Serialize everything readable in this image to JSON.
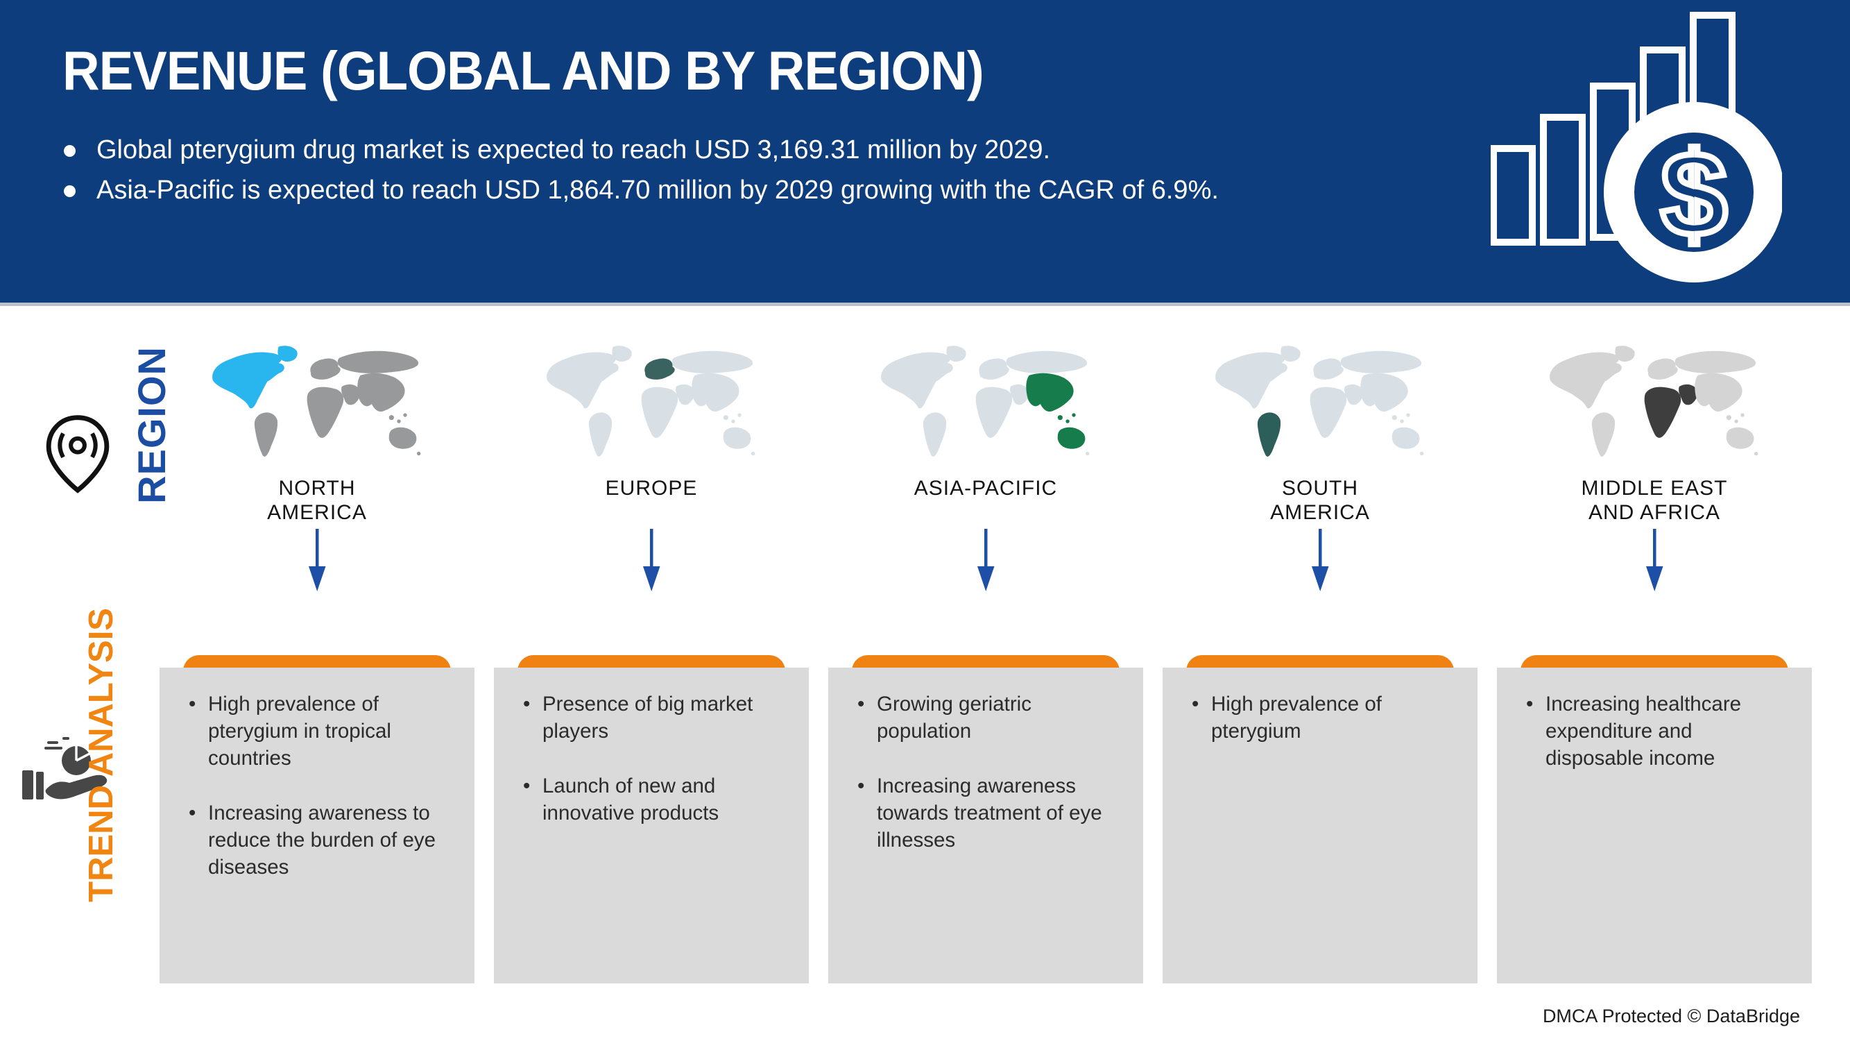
{
  "header": {
    "title": "REVENUE (GLOBAL AND BY REGION)",
    "bullets": [
      "Global pterygium drug market is expected to reach USD 3,169.31 million by 2029.",
      "Asia-Pacific is expected to reach USD 1,864.70 million by 2029 growing with the CAGR of 6.9%."
    ],
    "icons": [
      "bar-chart-growth-icon",
      "dollar-coin-icon"
    ]
  },
  "rails": {
    "region_label": "REGION",
    "region_icon": "map-pin-icon",
    "trend_label": "TREND ANALYSIS",
    "trend_icon": "hand-pie-chart-icon"
  },
  "regions": [
    {
      "id": "na",
      "name": "NORTH AMERICA",
      "highlight_color": "#29b6ee",
      "trends": [
        "High prevalence of pterygium in tropical countries",
        "Increasing awareness to reduce the burden of eye diseases"
      ]
    },
    {
      "id": "eu",
      "name": "EUROPE",
      "highlight_color": "#3a6360",
      "trends": [
        "Presence of big market players",
        "Launch of new and innovative products"
      ]
    },
    {
      "id": "ap",
      "name": "ASIA-PACIFIC",
      "highlight_color": "#177c4b",
      "trends": [
        "Growing geriatric population",
        "Increasing awareness towards treatment of eye illnesses"
      ]
    },
    {
      "id": "sa",
      "name": "SOUTH AMERICA",
      "highlight_color": "#2d5f5a",
      "trends": [
        "High prevalence of pterygium"
      ]
    },
    {
      "id": "mea",
      "name": "MIDDLE EAST AND AFRICA",
      "highlight_color": "#3e3e3e",
      "trends": [
        "Increasing healthcare expenditure and disposable income"
      ]
    }
  ],
  "footer": {
    "dmca_text": "DMCA Protected © DataBridge"
  },
  "colors": {
    "header_bg": "#0d3d7c",
    "accent_blue": "#1b4da3",
    "arrow_blue": "#1d4fa6",
    "accent_orange": "#ef8212",
    "panel_gray": "#dadada",
    "map_base_light": "#d8dfe5",
    "map_base_gray": "#98999b"
  }
}
